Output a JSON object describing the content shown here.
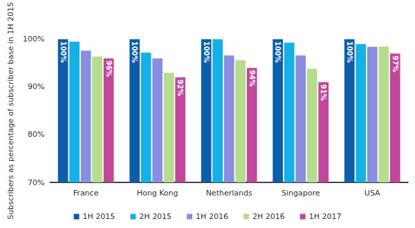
{
  "chart_data": {
    "type": "bar",
    "y_label": "Subscribers as percentage of subscriber base in 1H 2015",
    "categories": [
      "France",
      "Hong Kong",
      "Netherlands",
      "Singapore",
      "USA"
    ],
    "series": [
      {
        "name": "1H 2015",
        "color": "#0b5ea8",
        "values": [
          100,
          100,
          100,
          100,
          100
        ],
        "data_labels": true,
        "value_labels": [
          "100%",
          "100%",
          "100%",
          "100%",
          "100%"
        ]
      },
      {
        "name": "2H 2015",
        "color": "#14b0e6",
        "values": [
          99.5,
          97.2,
          100,
          99.3,
          99
        ]
      },
      {
        "name": "1H 2016",
        "color": "#8a8ee0",
        "values": [
          97.6,
          96,
          96.6,
          96.6,
          98.4
        ]
      },
      {
        "name": "2H 2016",
        "color": "#b6dc8e",
        "values": [
          96.4,
          93,
          95.6,
          93.8,
          98.5
        ]
      },
      {
        "name": "1H 2017",
        "color": "#c0479b",
        "values": [
          96,
          92,
          94,
          91,
          97
        ],
        "data_labels": true,
        "value_labels": [
          "96%",
          "92%",
          "94%",
          "91%",
          "97%"
        ]
      }
    ],
    "ylim": [
      70,
      100
    ],
    "yticks": [
      {
        "value": 70,
        "label": "70%"
      },
      {
        "value": 80,
        "label": "80%"
      },
      {
        "value": 90,
        "label": "90%"
      },
      {
        "value": 100,
        "label": "100%"
      }
    ],
    "grid": false,
    "legend": "bottom"
  }
}
